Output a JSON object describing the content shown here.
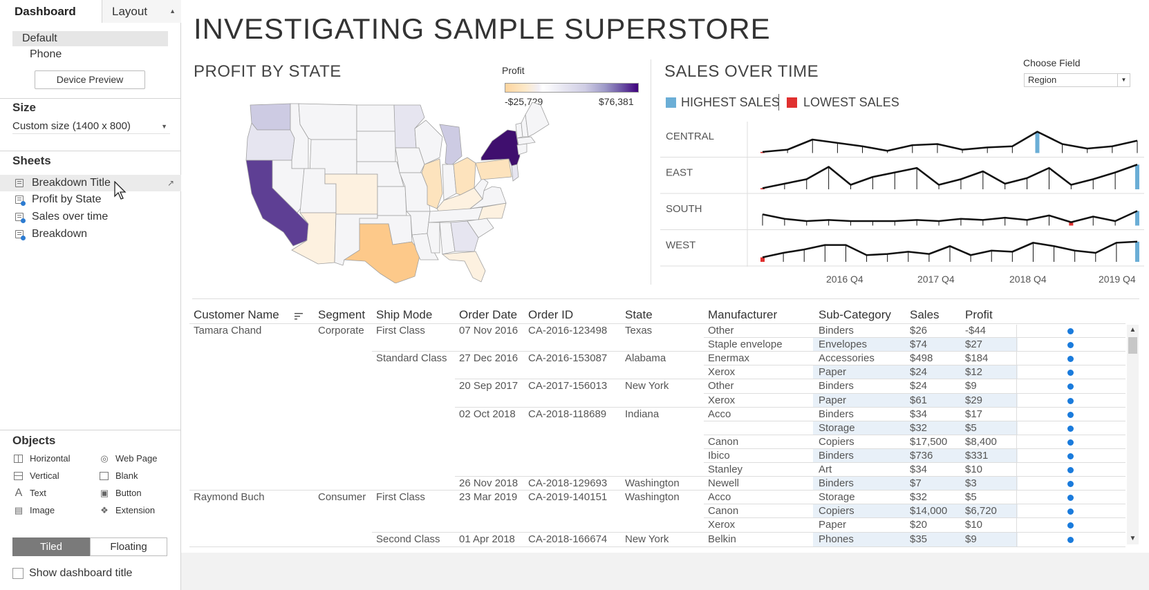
{
  "panel": {
    "tabs": {
      "dashboard": "Dashboard",
      "layout": "Layout"
    },
    "devices": {
      "default": "Default",
      "phone": "Phone",
      "preview_button": "Device Preview"
    },
    "size": {
      "heading": "Size",
      "value": "Custom size (1400 x 800)"
    },
    "sheets": {
      "heading": "Sheets",
      "items": [
        "Breakdown Title",
        "Profit by State",
        "Sales over time",
        "Breakdown"
      ]
    },
    "objects": {
      "heading": "Objects",
      "items": [
        "Horizontal",
        "Web Page",
        "Vertical",
        "Blank",
        "Text",
        "Button",
        "Image",
        "Extension"
      ]
    },
    "tiled": "Tiled",
    "floating": "Floating",
    "show_title": "Show dashboard title"
  },
  "dashboard": {
    "title": "INVESTIGATING SAMPLE SUPERSTORE",
    "profit_by_state": {
      "title": "PROFIT BY STATE",
      "legend_title": "Profit",
      "legend_min": "-$25,729",
      "legend_max": "$76,381"
    },
    "sales_over_time": {
      "title": "SALES OVER TIME",
      "choose_field_label": "Choose Field",
      "choose_field_value": "Region",
      "highest_label": "HIGHEST SALES",
      "lowest_label": "LOWEST SALES",
      "highest_color": "#6baed6",
      "lowest_color": "#e0302f"
    }
  },
  "chart_data": {
    "type": "line",
    "x_ticks": [
      "2016 Q4",
      "2017 Q4",
      "2018 Q4",
      "2019 Q4"
    ],
    "series": [
      {
        "name": "CENTRAL",
        "values": [
          0.05,
          0.15,
          0.6,
          0.45,
          0.3,
          0.1,
          0.35,
          0.4,
          0.15,
          0.25,
          0.3,
          0.95,
          0.4,
          0.2,
          0.3,
          0.55
        ],
        "max_index": 11,
        "min_index": 0
      },
      {
        "name": "EAST",
        "values": [
          0.05,
          0.25,
          0.45,
          1.0,
          0.2,
          0.55,
          0.75,
          0.95,
          0.2,
          0.45,
          0.8,
          0.25,
          0.5,
          0.95,
          0.2,
          0.45,
          0.75,
          1.1
        ],
        "max_index": 17,
        "min_index": 0
      },
      {
        "name": "SOUTH",
        "values": [
          0.5,
          0.3,
          0.2,
          0.25,
          0.2,
          0.2,
          0.2,
          0.25,
          0.2,
          0.3,
          0.25,
          0.35,
          0.25,
          0.45,
          0.15,
          0.4,
          0.2,
          0.65
        ],
        "max_index": 17,
        "min_index": 14
      },
      {
        "name": "WEST",
        "values": [
          0.2,
          0.4,
          0.55,
          0.75,
          0.75,
          0.3,
          0.35,
          0.45,
          0.35,
          0.7,
          0.3,
          0.5,
          0.45,
          0.85,
          0.7,
          0.5,
          0.4,
          0.85,
          0.9
        ],
        "max_index": 18,
        "min_index": 0
      }
    ]
  },
  "map": {
    "colors": {
      "neg_strong": "#fdc98a",
      "neg": "#fde3bd",
      "neg_light": "#fdf1e0",
      "neutral": "#f5f5f7",
      "pos_light": "#e6e5f0",
      "pos": "#cdcbe3",
      "pos_mid": "#a8a4cf",
      "pos_strong": "#5e3f94",
      "pos_max": "#3f0f6e"
    }
  },
  "table": {
    "headers": [
      "Customer Name",
      "Segment",
      "Ship Mode",
      "Order Date",
      "Order ID",
      "State",
      "Manufacturer",
      "Sub-Category",
      "Sales",
      "Profit"
    ],
    "rows": [
      {
        "customer": "Tamara Chand",
        "segment": "Corporate",
        "ship": "First Class",
        "date": "07 Nov 2016",
        "id": "CA-2016-123498",
        "state": "Texas",
        "mfr": "Other",
        "sub": "Binders",
        "sales": "$26",
        "profit": "-$44"
      },
      {
        "customer": "",
        "segment": "",
        "ship": "",
        "date": "",
        "id": "",
        "state": "",
        "mfr": "Staple envelope",
        "sub": "Envelopes",
        "sales": "$74",
        "profit": "$27"
      },
      {
        "customer": "",
        "segment": "",
        "ship": "Standard Class",
        "date": "27 Dec 2016",
        "id": "CA-2016-153087",
        "state": "Alabama",
        "mfr": "Enermax",
        "sub": "Accessories",
        "sales": "$498",
        "profit": "$184"
      },
      {
        "customer": "",
        "segment": "",
        "ship": "",
        "date": "",
        "id": "",
        "state": "",
        "mfr": "Xerox",
        "sub": "Paper",
        "sales": "$24",
        "profit": "$12"
      },
      {
        "customer": "",
        "segment": "",
        "ship": "",
        "date": "20 Sep 2017",
        "id": "CA-2017-156013",
        "state": "New York",
        "mfr": "Other",
        "sub": "Binders",
        "sales": "$24",
        "profit": "$9"
      },
      {
        "customer": "",
        "segment": "",
        "ship": "",
        "date": "",
        "id": "",
        "state": "",
        "mfr": "Xerox",
        "sub": "Paper",
        "sales": "$61",
        "profit": "$29"
      },
      {
        "customer": "",
        "segment": "",
        "ship": "",
        "date": "02 Oct 2018",
        "id": "CA-2018-118689",
        "state": "Indiana",
        "mfr": "Acco",
        "sub": "Binders",
        "sales": "$34",
        "profit": "$17"
      },
      {
        "customer": "",
        "segment": "",
        "ship": "",
        "date": "",
        "id": "",
        "state": "",
        "mfr": "",
        "sub": "Storage",
        "sales": "$32",
        "profit": "$5"
      },
      {
        "customer": "",
        "segment": "",
        "ship": "",
        "date": "",
        "id": "",
        "state": "",
        "mfr": "Canon",
        "sub": "Copiers",
        "sales": "$17,500",
        "profit": "$8,400"
      },
      {
        "customer": "",
        "segment": "",
        "ship": "",
        "date": "",
        "id": "",
        "state": "",
        "mfr": "Ibico",
        "sub": "Binders",
        "sales": "$736",
        "profit": "$331"
      },
      {
        "customer": "",
        "segment": "",
        "ship": "",
        "date": "",
        "id": "",
        "state": "",
        "mfr": "Stanley",
        "sub": "Art",
        "sales": "$34",
        "profit": "$10"
      },
      {
        "customer": "",
        "segment": "",
        "ship": "",
        "date": "26 Nov 2018",
        "id": "CA-2018-129693",
        "state": "Washington",
        "mfr": "Newell",
        "sub": "Binders",
        "sales": "$7",
        "profit": "$3"
      },
      {
        "customer": "Raymond Buch",
        "segment": "Consumer",
        "ship": "First Class",
        "date": "23 Mar 2019",
        "id": "CA-2019-140151",
        "state": "Washington",
        "mfr": "Acco",
        "sub": "Storage",
        "sales": "$32",
        "profit": "$5"
      },
      {
        "customer": "",
        "segment": "",
        "ship": "",
        "date": "",
        "id": "",
        "state": "",
        "mfr": "Canon",
        "sub": "Copiers",
        "sales": "$14,000",
        "profit": "$6,720"
      },
      {
        "customer": "",
        "segment": "",
        "ship": "",
        "date": "",
        "id": "",
        "state": "",
        "mfr": "Xerox",
        "sub": "Paper",
        "sales": "$20",
        "profit": "$10"
      },
      {
        "customer": "",
        "segment": "",
        "ship": "Second Class",
        "date": "01 Apr 2018",
        "id": "CA-2018-166674",
        "state": "New York",
        "mfr": "Belkin",
        "sub": "Phones",
        "sales": "$35",
        "profit": "$9"
      }
    ]
  }
}
